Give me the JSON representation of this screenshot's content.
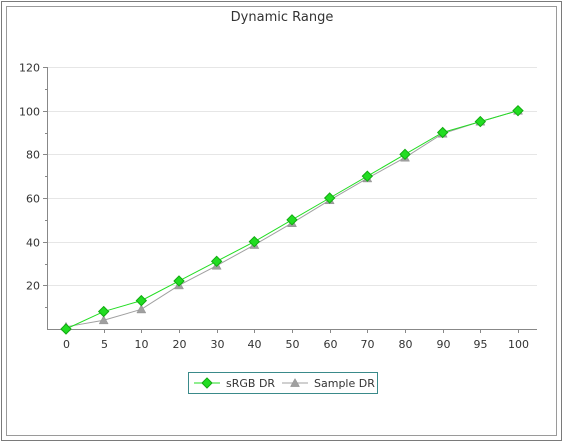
{
  "chart_data": {
    "type": "line",
    "title": "Dynamic Range",
    "xlabel": "",
    "ylabel": "",
    "categories": [
      "0",
      "5",
      "10",
      "20",
      "30",
      "40",
      "50",
      "60",
      "70",
      "80",
      "90",
      "95",
      "100"
    ],
    "ylim": [
      0,
      120
    ],
    "yticks": [
      20,
      40,
      60,
      80,
      100,
      120
    ],
    "grid": true,
    "legend_position": "bottom",
    "series": [
      {
        "name": "sRGB DR",
        "color": "#22dd22",
        "marker": "diamond",
        "values": [
          0,
          8,
          13,
          22,
          31,
          40,
          50,
          60,
          70,
          80,
          90,
          95,
          100
        ]
      },
      {
        "name": "Sample DR",
        "color": "#a0a0a0",
        "marker": "triangle",
        "values": [
          1,
          4,
          9,
          20,
          29,
          38.5,
          48.5,
          59,
          69,
          78.5,
          89.5,
          95,
          100
        ]
      }
    ]
  }
}
